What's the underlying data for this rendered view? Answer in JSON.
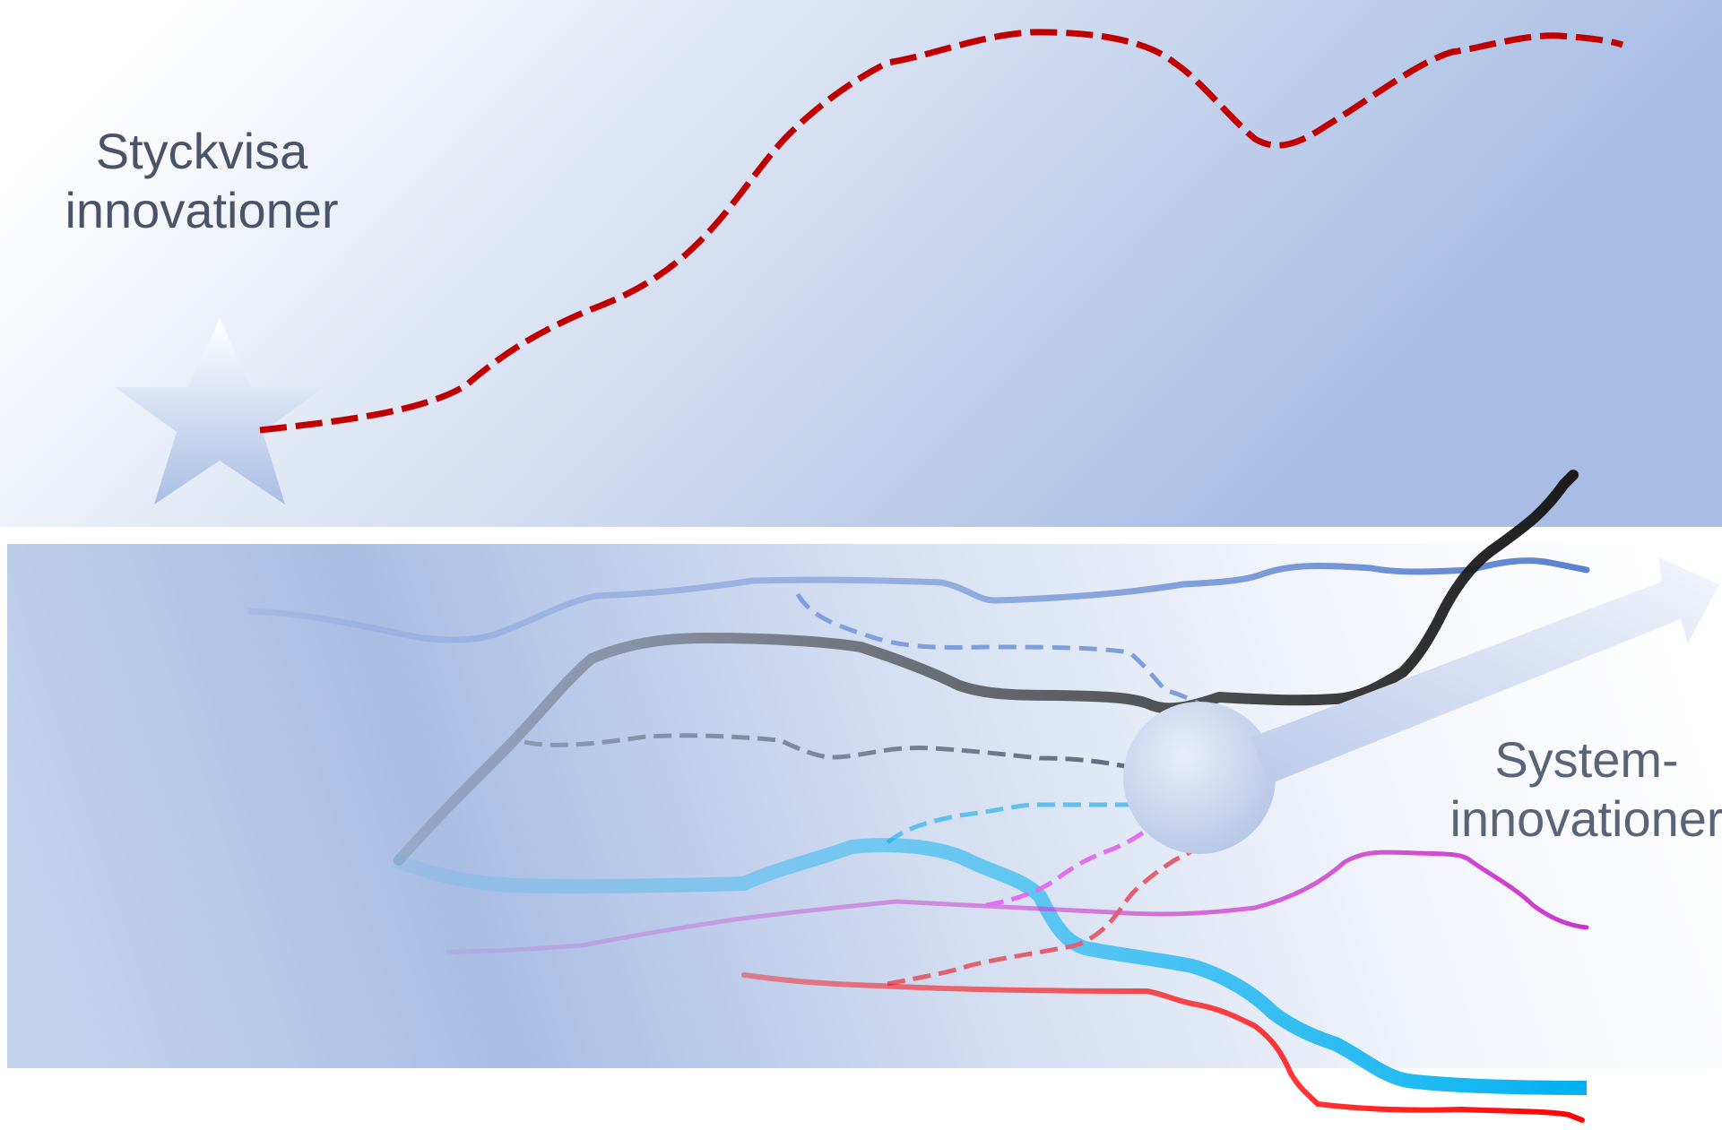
{
  "labels": {
    "top": [
      "Styckvisa",
      "innovationer"
    ],
    "bottom": [
      "System-",
      "innovationer"
    ]
  },
  "colors": {
    "band_blue": "#a9bde4",
    "band_light": "#ffffff",
    "dark_red": "#c00000",
    "blue_line": "#5b82cf",
    "black_line": "#1a1a1a",
    "grey_dash": "#5f6b80",
    "cyan_line": "#00b0f0",
    "magenta_line": "#cc33cc",
    "red_line": "#ff0000",
    "pink_dash": "#e36070",
    "violet_dash": "#e070f0"
  },
  "icons": {
    "start": "star-icon",
    "hub": "hub-circle",
    "direction": "arrow-icon"
  }
}
